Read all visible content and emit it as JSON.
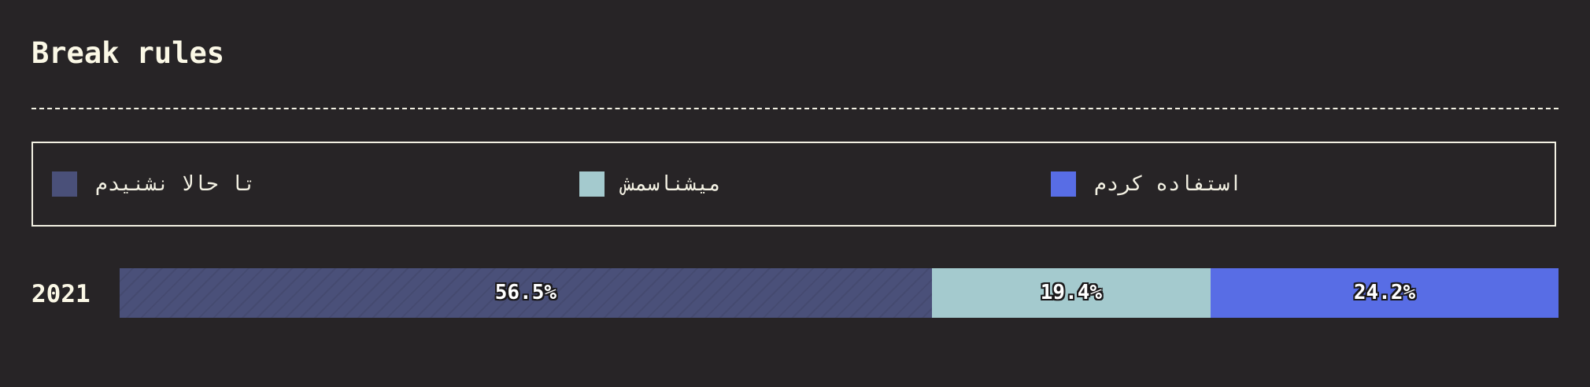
{
  "title": "Break rules",
  "legend": [
    {
      "label": "تا حالا نشنیدم",
      "color": "#4a5079"
    },
    {
      "label": "میشناسمش",
      "color": "#a4cace"
    },
    {
      "label": "استفاده کردم",
      "color": "#586de5"
    }
  ],
  "chart_data": {
    "type": "bar",
    "orientation": "horizontal",
    "stacked": true,
    "normalized": true,
    "title": "Break rules",
    "xlabel": "",
    "ylabel": "",
    "categories": [
      "2021"
    ],
    "series": [
      {
        "name": "تا حالا نشنیدم",
        "values": [
          56.5
        ],
        "color": "#4a5079",
        "pattern": "diagonal-hatch"
      },
      {
        "name": "میشناسمش",
        "values": [
          19.4
        ],
        "color": "#a4cace"
      },
      {
        "name": "استفاده کردم",
        "values": [
          24.2
        ],
        "color": "#586de5"
      }
    ],
    "data_labels": [
      "56.5%",
      "19.4%",
      "24.2%"
    ],
    "legend_position": "top",
    "grid": false
  }
}
